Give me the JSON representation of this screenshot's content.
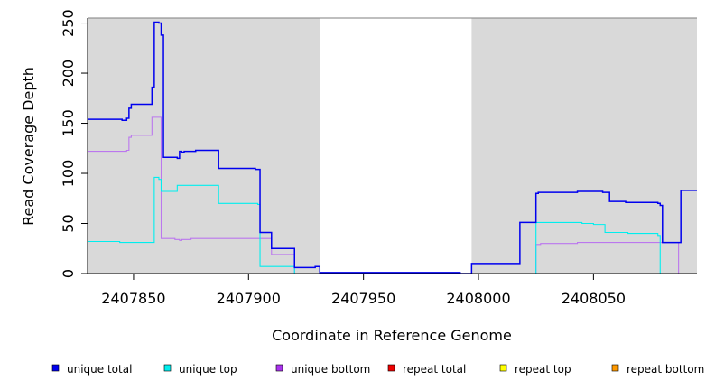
{
  "chart_data": {
    "type": "line",
    "style": "step",
    "xlabel": "Coordinate in Reference Genome",
    "ylabel": "Read Coverage Depth",
    "xlim": [
      2407830,
      2408095
    ],
    "ylim": [
      0,
      255
    ],
    "x_ticks": [
      2407850,
      2407900,
      2407950,
      2408000,
      2408050
    ],
    "x_tick_labels": [
      "2407850",
      "2407900",
      "2407950",
      "2408000",
      "2408050"
    ],
    "y_ticks": [
      0,
      50,
      100,
      150,
      200,
      250
    ],
    "y_tick_labels": [
      "0",
      "50",
      "100",
      "150",
      "200",
      "250"
    ],
    "shaded_regions": [
      [
        2407830,
        2407931
      ],
      [
        2407997,
        2408095
      ]
    ],
    "shade_color": "#d9d9d9",
    "series": [
      {
        "name": "unique total",
        "color": "#0000ee",
        "points": [
          [
            2407830,
            154
          ],
          [
            2407845,
            153
          ],
          [
            2407847,
            155
          ],
          [
            2407848,
            165
          ],
          [
            2407849,
            169
          ],
          [
            2407858,
            186
          ],
          [
            2407859,
            251
          ],
          [
            2407861,
            250
          ],
          [
            2407862,
            238
          ],
          [
            2407863,
            116
          ],
          [
            2407869,
            115
          ],
          [
            2407870,
            122
          ],
          [
            2407871,
            121
          ],
          [
            2407872,
            122
          ],
          [
            2407877,
            123
          ],
          [
            2407887,
            105
          ],
          [
            2407903,
            104
          ],
          [
            2407905,
            41
          ],
          [
            2407910,
            25
          ],
          [
            2407920,
            6
          ],
          [
            2407929,
            7
          ],
          [
            2407931,
            1
          ],
          [
            2407992,
            0
          ],
          [
            2407997,
            10
          ],
          [
            2408018,
            51
          ],
          [
            2408025,
            80
          ],
          [
            2408026,
            81
          ],
          [
            2408043,
            82
          ],
          [
            2408054,
            81
          ],
          [
            2408057,
            72
          ],
          [
            2408064,
            71
          ],
          [
            2408078,
            70
          ],
          [
            2408079,
            68
          ],
          [
            2408080,
            31
          ],
          [
            2408088,
            83
          ],
          [
            2408095,
            83
          ]
        ]
      },
      {
        "name": "unique top",
        "color": "#00eeee",
        "points": [
          [
            2407830,
            32
          ],
          [
            2407844,
            31
          ],
          [
            2407859,
            96
          ],
          [
            2407861,
            94
          ],
          [
            2407862,
            82
          ],
          [
            2407869,
            88
          ],
          [
            2407887,
            70
          ],
          [
            2407904,
            69
          ],
          [
            2407905,
            7
          ],
          [
            2407920,
            0
          ],
          [
            2408025,
            51
          ],
          [
            2408045,
            50
          ],
          [
            2408050,
            49
          ],
          [
            2408055,
            41
          ],
          [
            2408065,
            40
          ],
          [
            2408078,
            38
          ],
          [
            2408079,
            0
          ],
          [
            2408095,
            0
          ]
        ]
      },
      {
        "name": "unique bottom",
        "color": "#bb77ee",
        "points": [
          [
            2407830,
            122
          ],
          [
            2407847,
            123
          ],
          [
            2407848,
            136
          ],
          [
            2407849,
            138
          ],
          [
            2407858,
            156
          ],
          [
            2407862,
            35
          ],
          [
            2407868,
            34
          ],
          [
            2407870,
            33
          ],
          [
            2407871,
            34
          ],
          [
            2407875,
            35
          ],
          [
            2407905,
            35
          ],
          [
            2407910,
            19
          ],
          [
            2407920,
            0
          ],
          [
            2408025,
            29
          ],
          [
            2408027,
            30
          ],
          [
            2408043,
            31
          ],
          [
            2408080,
            31
          ],
          [
            2408087,
            0
          ],
          [
            2408095,
            0
          ]
        ]
      },
      {
        "name": "repeat total",
        "color": "#ee0000",
        "points": [
          [
            2407830,
            0
          ],
          [
            2408095,
            0
          ]
        ]
      },
      {
        "name": "repeat top",
        "color": "#eeee00",
        "points": [
          [
            2407830,
            0
          ],
          [
            2408095,
            0
          ]
        ]
      },
      {
        "name": "repeat bottom",
        "color": "#ee9900",
        "points": [
          [
            2407830,
            0
          ],
          [
            2408095,
            0
          ]
        ]
      }
    ],
    "legend": {
      "position": "bottom",
      "items": [
        {
          "label": "unique total",
          "color": "#0000ee"
        },
        {
          "label": "unique top",
          "color": "#00eeee"
        },
        {
          "label": "unique bottom",
          "color": "#aa33ee"
        },
        {
          "label": "repeat total",
          "color": "#ee0000"
        },
        {
          "label": "repeat top",
          "color": "#ffff00"
        },
        {
          "label": "repeat bottom",
          "color": "#ff9900"
        }
      ]
    }
  }
}
